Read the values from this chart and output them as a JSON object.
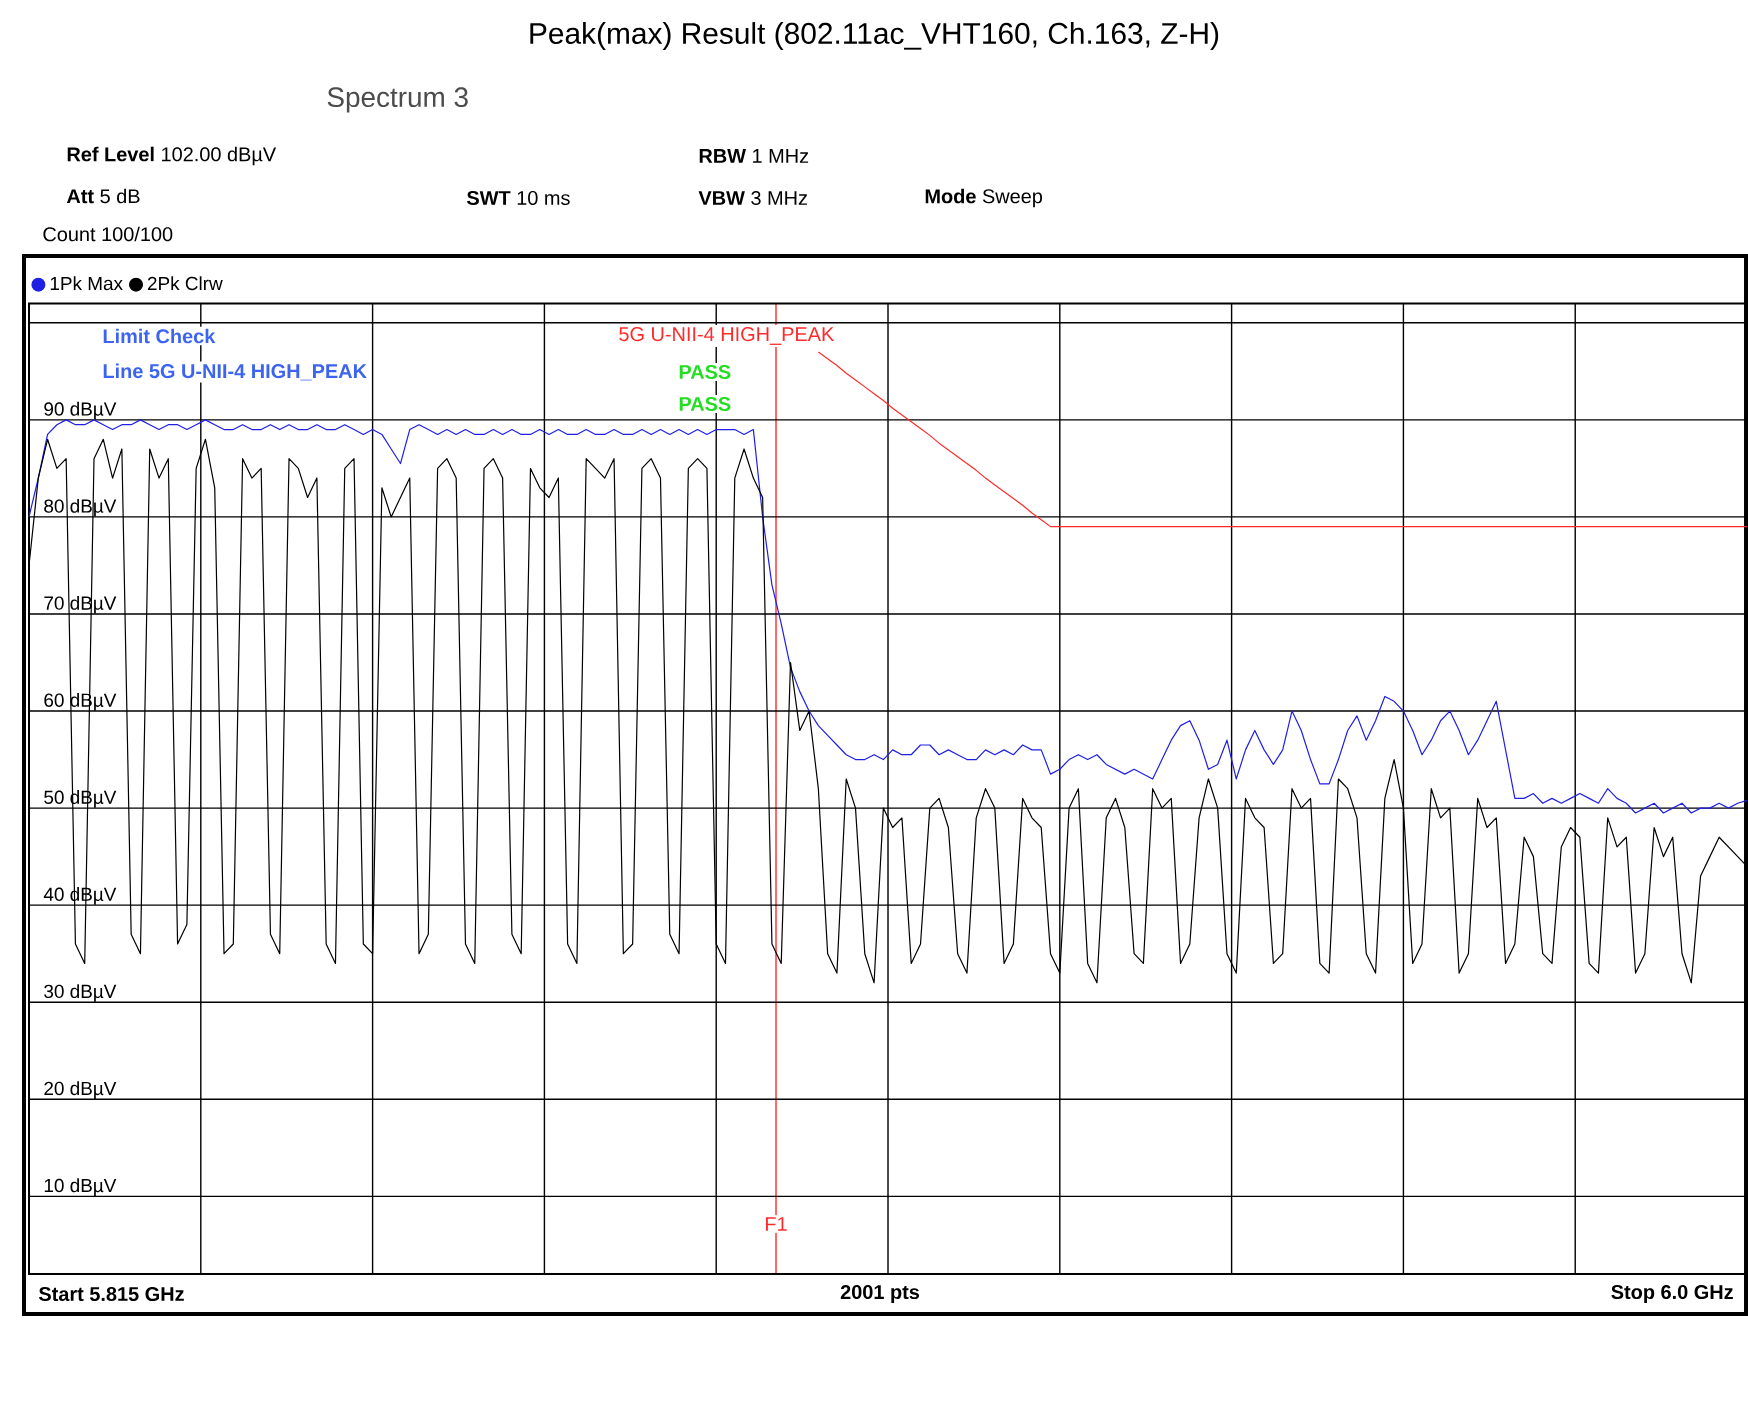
{
  "chart_data": {
    "type": "line",
    "title": "Peak(max) Result (802.11ac_VHT160, Ch.163, Z-H)",
    "categories": [
      null,
      null,
      null,
      null,
      null,
      null,
      null,
      null,
      null,
      null,
      null,
      null,
      null,
      null,
      null,
      null,
      null,
      null,
      null,
      null,
      null,
      null,
      null,
      null,
      null,
      null,
      null,
      null,
      null,
      null,
      null,
      null,
      null,
      null,
      null,
      null,
      null,
      null,
      null,
      null,
      null,
      null,
      null,
      null,
      null,
      null,
      null,
      null,
      null,
      null,
      null,
      null,
      null,
      null,
      null,
      null,
      null,
      null,
      null,
      null,
      null,
      null,
      null,
      null,
      null,
      null,
      null,
      null,
      null,
      null,
      null,
      null,
      null,
      null,
      null,
      null,
      null,
      null,
      null,
      null,
      null,
      null,
      null,
      null,
      null,
      null,
      null,
      null,
      null,
      null,
      null,
      null,
      null,
      null,
      null,
      null,
      null,
      null,
      null,
      null,
      null,
      null,
      null,
      null,
      null,
      null,
      null,
      null,
      null,
      null,
      null,
      null,
      null,
      null,
      null,
      null,
      null,
      null,
      null,
      null,
      null,
      null,
      null,
      null,
      null,
      null,
      null,
      null,
      null,
      null,
      null,
      null,
      null,
      null,
      null,
      null,
      null,
      null,
      null,
      null,
      null,
      null,
      null,
      null,
      null,
      null,
      null,
      null,
      null,
      null,
      null,
      null,
      null,
      null,
      null,
      null,
      null,
      null,
      null,
      null,
      null,
      null,
      null,
      null,
      null,
      null,
      null,
      null,
      null,
      null,
      null,
      null,
      null,
      null,
      null,
      null,
      null,
      null,
      null,
      null,
      null,
      null,
      null,
      null,
      null,
      null
    ],
    "ylim": [
      2,
      102
    ],
    "yticks": [
      {
        "value": 10,
        "label": "10 dBµV"
      },
      {
        "value": 20,
        "label": "20 dBµV"
      },
      {
        "value": 30,
        "label": "30 dBµV"
      },
      {
        "value": 40,
        "label": "40 dBµV"
      },
      {
        "value": 50,
        "label": "50 dBµV"
      },
      {
        "value": 60,
        "label": "60 dBµV"
      },
      {
        "value": 70,
        "label": "70 dBµV"
      },
      {
        "value": 80,
        "label": "80 dBµV"
      },
      {
        "value": 90,
        "label": "90 dBµV"
      },
      {
        "value": 100,
        "label": null
      }
    ],
    "grid": true,
    "legend": "top left",
    "series": [
      {
        "name": "1Pk Max",
        "color": "#1f1fe6",
        "values": [
          80,
          84,
          88.5,
          89.5,
          90,
          89.5,
          89.5,
          90,
          89.5,
          89,
          89.5,
          89.5,
          90,
          89.5,
          89,
          89.5,
          89.5,
          89,
          89.5,
          90,
          89.5,
          89,
          89,
          89.5,
          89,
          89,
          89.5,
          89,
          89.5,
          89,
          89,
          89.5,
          89,
          89,
          89.5,
          89,
          88.5,
          89,
          88.5,
          87,
          85.5,
          89,
          89.5,
          89,
          88.5,
          89,
          88.5,
          89,
          88.5,
          88.5,
          89,
          88.5,
          89,
          88.5,
          88.5,
          89,
          88.5,
          89,
          88.5,
          88.5,
          89,
          88.5,
          88.5,
          89,
          88.5,
          88.5,
          89,
          88.5,
          89,
          88.5,
          89,
          88.5,
          89,
          88.5,
          89,
          89,
          89,
          88.5,
          89,
          80,
          73,
          69,
          64.5,
          62,
          60,
          58.5,
          57.5,
          56.5,
          55.5,
          55,
          55,
          55.5,
          55,
          56,
          55.5,
          55.5,
          56.5,
          56.5,
          55.5,
          56,
          55.5,
          55,
          55,
          56,
          55.5,
          56,
          55.5,
          56.5,
          56,
          56,
          53.5,
          54,
          55,
          55.5,
          55,
          55.5,
          54.5,
          54,
          53.5,
          54,
          53.5,
          53,
          55,
          57,
          58.5,
          59,
          57,
          54,
          54.5,
          57,
          53,
          56,
          58,
          56,
          54.5,
          56,
          60,
          58,
          55,
          52.5,
          52.5,
          55,
          58,
          59.5,
          57,
          59,
          61.5,
          61,
          60,
          58,
          55.5,
          57,
          59,
          60,
          58,
          55.5,
          57,
          59,
          61,
          56,
          51,
          51,
          51.5,
          50.5,
          51,
          50.5,
          51,
          51.5,
          51,
          50.5,
          52,
          51,
          50.5,
          49.5,
          50,
          50.5,
          49.5,
          50,
          50.5,
          49.5,
          50,
          50,
          50.5,
          50,
          50.5,
          50.8
        ]
      },
      {
        "name": "2Pk Clrw",
        "color": "#000000",
        "values": [
          75,
          84,
          88,
          85,
          86,
          36,
          34,
          86,
          88,
          84,
          87,
          37,
          35,
          87,
          84,
          86,
          36,
          38,
          85,
          88,
          83,
          35,
          36,
          86,
          84,
          85,
          37,
          35,
          86,
          85,
          82,
          84,
          36,
          34,
          85,
          86,
          36,
          35,
          83,
          80,
          82,
          84,
          35,
          37,
          85,
          86,
          84,
          36,
          34,
          85,
          86,
          84,
          37,
          35,
          85,
          83,
          82,
          84,
          36,
          34,
          86,
          85,
          84,
          86,
          35,
          36,
          85,
          86,
          84,
          37,
          35,
          85,
          86,
          85,
          36,
          34,
          84,
          87,
          84,
          82,
          36,
          34,
          65,
          58,
          60,
          52,
          35,
          33,
          53,
          50,
          35,
          32,
          50,
          48,
          49,
          34,
          36,
          50,
          51,
          48,
          35,
          33,
          49,
          52,
          50,
          34,
          36,
          51,
          49,
          48,
          35,
          33,
          50,
          52,
          34,
          32,
          49,
          51,
          48,
          35,
          34,
          52,
          50,
          51,
          34,
          36,
          49,
          53,
          50,
          35,
          33,
          51,
          49,
          48,
          34,
          35,
          52,
          50,
          51,
          34,
          33,
          53,
          52,
          49,
          35,
          33,
          51,
          55,
          50,
          34,
          36,
          52,
          49,
          50,
          33,
          35,
          51,
          48,
          49,
          34,
          36,
          47,
          45,
          35,
          34,
          46,
          48,
          47,
          34,
          33,
          49,
          46,
          47,
          33,
          35,
          48,
          45,
          47,
          35,
          32,
          43,
          45,
          47,
          46,
          45,
          44
        ]
      },
      {
        "color": "#ff2a2a",
        "values": [
          null,
          null,
          null,
          null,
          null,
          null,
          null,
          null,
          null,
          null,
          null,
          null,
          null,
          null,
          null,
          null,
          null,
          null,
          null,
          null,
          null,
          null,
          null,
          null,
          null,
          null,
          null,
          null,
          null,
          null,
          null,
          null,
          null,
          null,
          null,
          null,
          null,
          null,
          null,
          null,
          null,
          null,
          null,
          null,
          null,
          null,
          null,
          null,
          null,
          null,
          null,
          null,
          null,
          null,
          null,
          null,
          null,
          null,
          null,
          null,
          null,
          null,
          null,
          null,
          null,
          null,
          null,
          null,
          null,
          null,
          null,
          null,
          null,
          null,
          null,
          null,
          null,
          null,
          null,
          null,
          null,
          null,
          null,
          null,
          null,
          97,
          96.3,
          95.6,
          94.8,
          94.1,
          93.4,
          92.7,
          92,
          91.2,
          90.5,
          89.8,
          89.1,
          88.4,
          87.6,
          86.9,
          86.2,
          85.5,
          84.8,
          84,
          83.3,
          82.6,
          81.9,
          81.2,
          80.4,
          79.7,
          79,
          79,
          79,
          79,
          79,
          79,
          79,
          79,
          79,
          79,
          79,
          79,
          79,
          79,
          79,
          79,
          79,
          79,
          79,
          79,
          79,
          79,
          79,
          79,
          79,
          79,
          79,
          79,
          79,
          79,
          79,
          79,
          79,
          79,
          79,
          79,
          79,
          79,
          79,
          79,
          79,
          79,
          79,
          79,
          79,
          79,
          79,
          79,
          79,
          79,
          79,
          79,
          79,
          79,
          79,
          79,
          79,
          79,
          79,
          79,
          79,
          79,
          79,
          79,
          79,
          79,
          79,
          79,
          79,
          79,
          79,
          79,
          79,
          79,
          79,
          79
        ]
      }
    ],
    "annotations": [
      "Spectrum 3",
      "**Ref Level** 102.00 dBµV",
      "**Att** 5 dB",
      "**SWT** 10 ms",
      "**RBW** 1 MHz",
      "**VBW** 3 MHz",
      "**Mode** Sweep",
      "Count 100/100",
      "Limit Check",
      "Line 5G U-NII-4 HIGH_PEAK",
      "PASS",
      "PASS",
      "Start 5.815 GHz",
      "2001 pts",
      "Stop 6.0 GHz",
      "5G U-NII-4 HIGH_PEAK",
      "F1"
    ]
  }
}
